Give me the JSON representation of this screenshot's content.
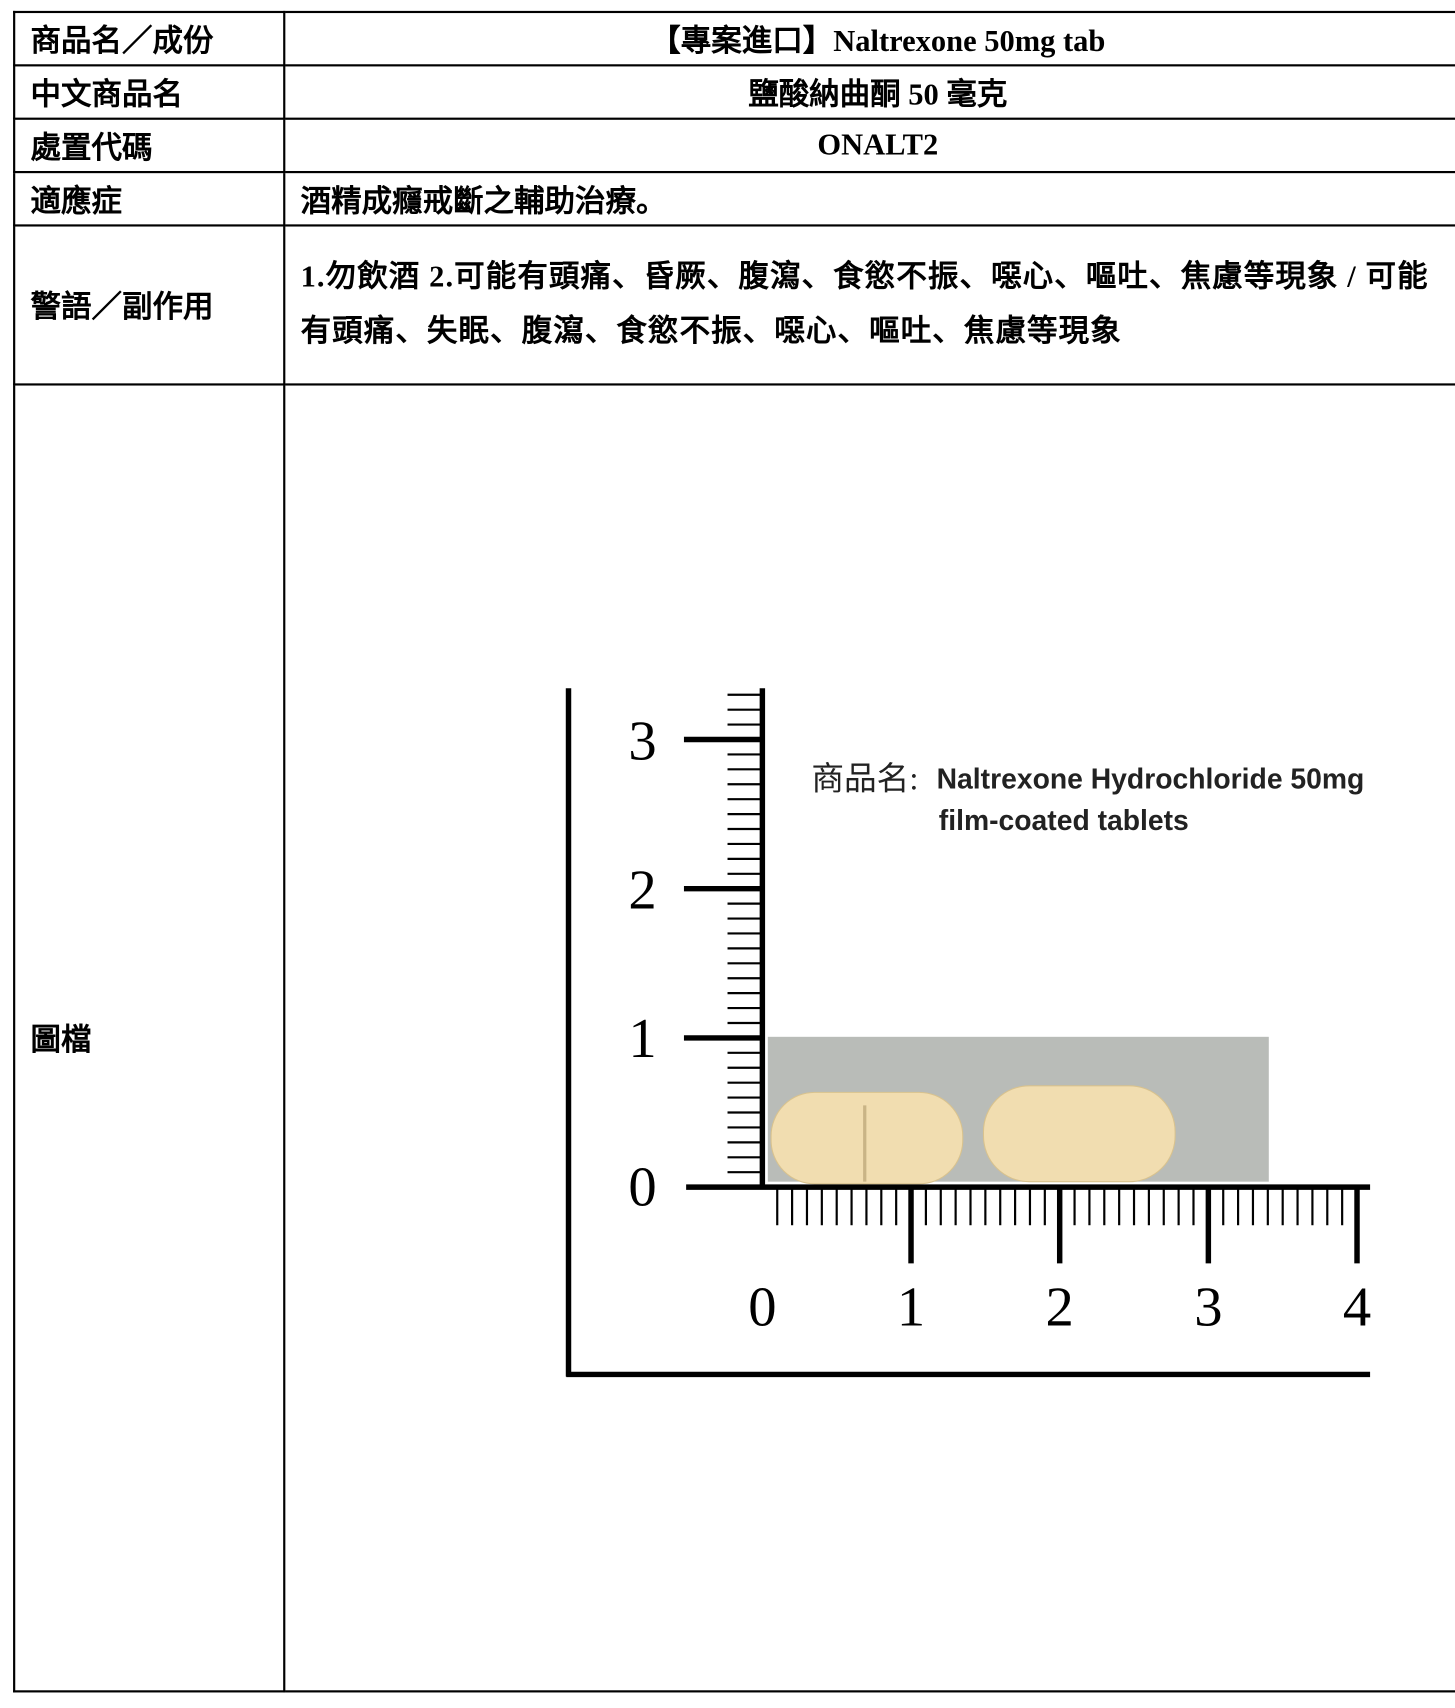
{
  "table": {
    "rows": [
      [
        "商品名／成份",
        "【專案進口】Naltrexone 50mg tab"
      ],
      [
        "中文商品名",
        "鹽酸納曲酮 50 毫克"
      ],
      [
        "處置代碼",
        "ONALT2"
      ],
      [
        "適應症",
        "酒精成癮戒斷之輔助治療。"
      ],
      [
        "警語／副作用",
        "1.勿飲酒  2.可能有頭痛、昏厥、腹瀉、食慾不振、噁心、嘔吐、焦慮等現象 / 可能有頭痛、失眠、腹瀉、食慾不振、噁心、嘔吐、焦慮等現象"
      ],
      [
        "圖檔"
      ]
    ]
  },
  "image": {
    "caption_label": "商品名:",
    "caption_line1": "Naltrexone Hydrochloride 50mg",
    "caption_line2": "film-coated tablets",
    "ruler_vertical_labels": [
      "0",
      "1",
      "2",
      "3"
    ],
    "ruler_horizontal_labels": [
      "0",
      "1",
      "2",
      "3",
      "4"
    ]
  }
}
